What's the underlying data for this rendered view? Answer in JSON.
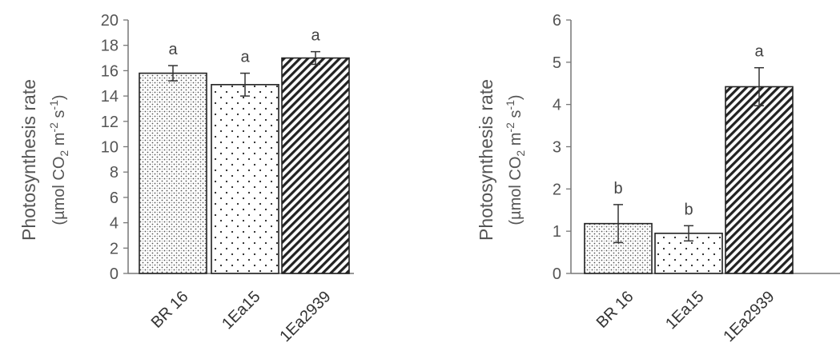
{
  "chart_data": [
    {
      "type": "bar",
      "categories": [
        "BR 16",
        "1Ea15",
        "1Ea2939"
      ],
      "values": [
        15.8,
        14.9,
        17.0
      ],
      "errors": [
        0.6,
        0.9,
        0.5
      ],
      "significance": [
        "a",
        "a",
        "a"
      ],
      "ylim": [
        0,
        20
      ],
      "yticks": [
        "0",
        "2",
        "4",
        "6",
        "8",
        "10",
        "12",
        "14",
        "16",
        "18",
        "20"
      ],
      "ylabel_line1": "Photosynthesis rate",
      "ylabel_line2": {
        "a": "(µmol CO",
        "b": "2",
        "c": " m",
        "d": "-2",
        "e": " s",
        "f": "-1",
        "g": ")"
      },
      "patterns": [
        "dense-dots",
        "sparse-dots",
        "diagonal-hatch"
      ]
    },
    {
      "type": "bar",
      "categories": [
        "BR 16",
        "1Ea15",
        "1Ea2939"
      ],
      "values": [
        1.18,
        0.95,
        4.42
      ],
      "errors": [
        0.45,
        0.18,
        0.45
      ],
      "significance": [
        "b",
        "b",
        "a"
      ],
      "ylim": [
        0,
        6
      ],
      "yticks": [
        "0",
        "1",
        "2",
        "3",
        "4",
        "5",
        "6"
      ],
      "ylabel_line1": "Photosynthesis rate",
      "ylabel_line2": {
        "a": "(µmol CO",
        "b": "2",
        "c": " m",
        "d": "-2",
        "e": " s",
        "f": "-1",
        "g": ")"
      },
      "patterns": [
        "dense-dots",
        "sparse-dots",
        "diagonal-hatch"
      ]
    }
  ]
}
